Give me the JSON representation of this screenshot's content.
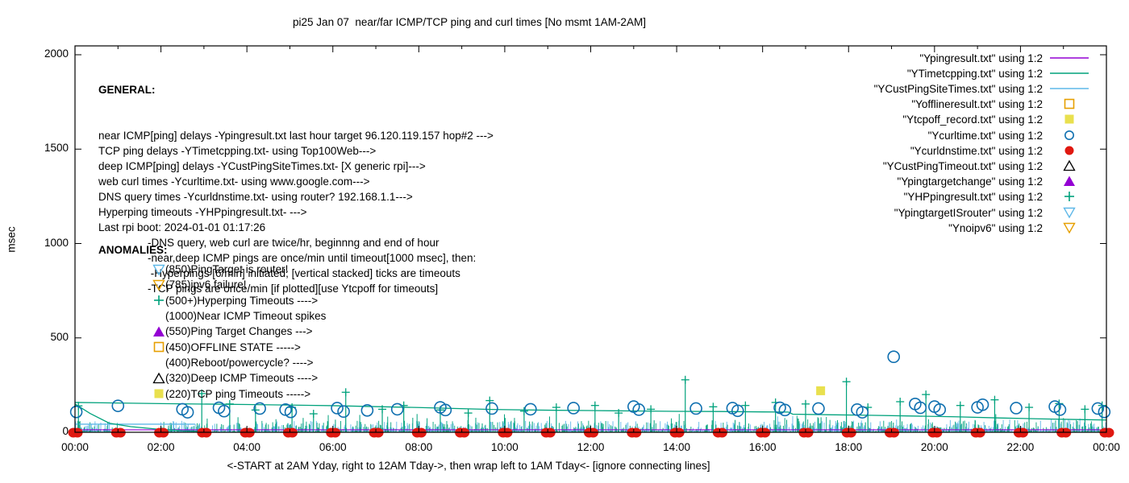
{
  "title": "pi25 Jan 07  near/far ICMP/TCP ping and curl times [No msmt 1AM-2AM]",
  "axes": {
    "ylabel": "msec",
    "xlabel": "<-START at 2AM Yday, right to 12AM Tday->, then wrap left to 1AM Tday<- [ignore connecting lines]",
    "ylim": [
      0,
      2000
    ],
    "yticks": [
      0,
      500,
      1000,
      1500,
      2000
    ],
    "xtick_hours": [
      0,
      2,
      4,
      6,
      8,
      10,
      12,
      14,
      16,
      18,
      20,
      22,
      24
    ],
    "xtick_labels": [
      "00:00",
      "02:00",
      "04:00",
      "06:00",
      "08:00",
      "10:00",
      "12:00",
      "14:00",
      "16:00",
      "18:00",
      "20:00",
      "22:00",
      "00:00"
    ]
  },
  "general": {
    "heading": "GENERAL:",
    "lines": [
      "near ICMP[ping] delays -Ypingresult.txt last hour target 96.120.119.157 hop#2 --->",
      "TCP ping delays -YTimetcpping.txt- using Top100Web--->",
      "deep ICMP[ping] delays -YCustPingSiteTimes.txt- [X generic rpi]--->",
      "web curl times -Ycurltime.txt- using www.google.com--->",
      "DNS query times -Ycurldnstime.txt- using router? 192.168.1.1--->",
      "Hyperping timeouts -YHPpingresult.txt- --->",
      "Last rpi boot: 2024-01-01 01:17:26"
    ],
    "indented_lines": [
      "-DNS query, web curl are twice/hr, beginnng and end of hour",
      "-near,deep ICMP pings are once/min until timeout[1000 msec], then:",
      " -Hyperpings [6/min] initiated; [vertical stacked] ticks are timeouts",
      "-TCP pings are once/min [if plotted][use Ytcpoff for timeouts]"
    ]
  },
  "anomalies": {
    "heading": "ANOMALIES:",
    "items": [
      {
        "marker": "triangle-down-open",
        "color": "#5fb8e8",
        "text": "(850)PingTarget is router!"
      },
      {
        "marker": "triangle-down-open",
        "color": "#e69f00",
        "text": "(785)ipv6 failure!"
      },
      {
        "marker": "plus",
        "color": "#00a27c",
        "text": "(500+)Hyperping Timeouts ---->"
      },
      {
        "marker": "none",
        "color": "",
        "text": "(1000)Near ICMP Timeout spikes"
      },
      {
        "marker": "triangle-filled",
        "color": "#9400d3",
        "text": "(550)Ping Target Changes --->"
      },
      {
        "marker": "square-open",
        "color": "#e69f00",
        "text": "(450)OFFLINE STATE ----->"
      },
      {
        "marker": "none",
        "color": "",
        "text": "(400)Reboot/powercycle? ---->"
      },
      {
        "marker": "triangle-open",
        "color": "#000000",
        "text": "(320)Deep ICMP Timeouts ---->"
      },
      {
        "marker": "square-filled",
        "color": "#e9e04e",
        "text": "(220)TCP ping Timeouts ----->"
      }
    ]
  },
  "legend": {
    "entries": [
      {
        "label": "\"Ypingresult.txt\" using 1:2",
        "marker": "line",
        "color": "#9400d3"
      },
      {
        "label": "\"YTimetcpping.txt\" using 1:2",
        "marker": "line",
        "color": "#00a27c"
      },
      {
        "label": "\"YCustPingSiteTimes.txt\" using 1:2",
        "marker": "line",
        "color": "#5fb8e8"
      },
      {
        "label": "\"Yofflineresult.txt\" using 1:2",
        "marker": "square-open",
        "color": "#e69f00"
      },
      {
        "label": "\"Ytcpoff_record.txt\" using 1:2",
        "marker": "square-filled",
        "color": "#e9e04e"
      },
      {
        "label": "\"Ycurltime.txt\" using 1:2",
        "marker": "circle-open",
        "color": "#1070b0"
      },
      {
        "label": "\"Ycurldnstime.txt\" using 1:2",
        "marker": "circle-filled",
        "color": "#e01810"
      },
      {
        "label": "\"YCustPingTimeout.txt\" using 1:2",
        "marker": "triangle-open",
        "color": "#000000"
      },
      {
        "label": "\"Ypingtargetchange\" using 1:2",
        "marker": "triangle-filled",
        "color": "#9400d3"
      },
      {
        "label": "\"YHPpingresult.txt\" using 1:2",
        "marker": "plus",
        "color": "#00a27c"
      },
      {
        "label": "\"YpingtargetISrouter\" using 1:2",
        "marker": "triangle-down-open",
        "color": "#5fb8e8"
      },
      {
        "label": "\"Ynoipv6\" using 1:2",
        "marker": "triangle-down-open",
        "color": "#e69f00"
      }
    ]
  },
  "chart_data": {
    "type": "line+scatter",
    "x_unit": "hour of day",
    "xlim_hours": [
      0,
      24
    ],
    "ylim_msec": [
      0,
      2000
    ],
    "no_measurement_gap_hours": [
      1.03,
      2.0
    ],
    "series": [
      {
        "name": "Ypingresult.txt",
        "style": "line",
        "color": "#9400d3",
        "segments": [
          [
            [
              0,
              13
            ],
            [
              24,
              13
            ]
          ]
        ],
        "note": "near ICMP ping delay, ~13 msec flat, mostly hidden under noise band"
      },
      {
        "name": "YTimetcpping.txt",
        "style": "line",
        "color": "#00a27c",
        "segments": [
          [
            [
              0,
              158
            ],
            [
              2,
              152
            ],
            [
              4,
              147
            ],
            [
              6,
              141
            ],
            [
              8,
              131
            ],
            [
              9.7,
              121
            ],
            [
              11,
              117
            ],
            [
              12,
              115
            ],
            [
              13,
              113
            ],
            [
              14,
              111
            ],
            [
              15,
              110
            ],
            [
              16,
              108
            ],
            [
              16.6,
              107
            ],
            [
              16.7,
              96
            ],
            [
              17.5,
              93
            ],
            [
              18.5,
              90
            ],
            [
              19.5,
              86
            ],
            [
              20.5,
              82
            ],
            [
              21.5,
              76
            ],
            [
              22.5,
              71
            ],
            [
              23.5,
              67
            ],
            [
              24,
              65
            ]
          ],
          [
            [
              0,
              150
            ],
            [
              0.35,
              100
            ],
            [
              0.8,
              48
            ],
            [
              1.3,
              30
            ],
            [
              1.9,
              17
            ],
            [
              2.5,
              8
            ],
            [
              3.1,
              4
            ]
          ]
        ],
        "note": "TCP ping delay, slowly descending ~158 to ~65 msec"
      },
      {
        "name": "YCustPingSiteTimes.txt",
        "style": "noise-band",
        "color": "#5fb8e8",
        "color2": "#00a27c",
        "band_msec": [
          3,
          58
        ],
        "elevated_amp": [
          [
            16.2,
            17.7,
            88
          ],
          [
            18.0,
            22.7,
            65
          ],
          [
            22.7,
            24.0,
            75
          ]
        ],
        "flat_segment": {
          "from": 0,
          "to": 2.8,
          "msec": 43
        },
        "seed": 1234,
        "note": "deep ICMP ping delays, dense noisy band 3-90 msec, gap 1AM-2AM"
      },
      {
        "name": "YHPpingresult.txt",
        "style": "spikes-plus",
        "color": "#00a27c",
        "points": [
          [
            0.08,
            140
          ],
          [
            2.95,
            205
          ],
          [
            3.6,
            150
          ],
          [
            4.2,
            118
          ],
          [
            5.05,
            132
          ],
          [
            5.55,
            98
          ],
          [
            6.3,
            212
          ],
          [
            7.15,
            122
          ],
          [
            7.65,
            142
          ],
          [
            8.5,
            118
          ],
          [
            9.15,
            102
          ],
          [
            9.65,
            168
          ],
          [
            10.45,
            112
          ],
          [
            11.2,
            132
          ],
          [
            12.1,
            142
          ],
          [
            12.65,
            102
          ],
          [
            13.4,
            122
          ],
          [
            14.2,
            278
          ],
          [
            14.85,
            135
          ],
          [
            15.6,
            142
          ],
          [
            16.3,
            158
          ],
          [
            17.0,
            150
          ],
          [
            17.95,
            268
          ],
          [
            18.45,
            132
          ],
          [
            19.2,
            162
          ],
          [
            19.8,
            200
          ],
          [
            20.6,
            142
          ],
          [
            21.4,
            172
          ],
          [
            22.2,
            132
          ],
          [
            22.9,
            152
          ],
          [
            23.5,
            122
          ],
          [
            23.9,
            142
          ]
        ],
        "note": "hyperping timeout vertical stacked ticks with + at top"
      },
      {
        "name": "Ycurltime.txt",
        "style": "scatter",
        "marker": "circle-open",
        "color": "#1070b0",
        "points": [
          [
            0.03,
            108
          ],
          [
            1.0,
            140
          ],
          [
            2.5,
            122
          ],
          [
            2.62,
            106
          ],
          [
            3.35,
            130
          ],
          [
            3.47,
            112
          ],
          [
            4.3,
            126
          ],
          [
            4.9,
            120
          ],
          [
            5.02,
            108
          ],
          [
            6.1,
            128
          ],
          [
            6.25,
            110
          ],
          [
            6.8,
            116
          ],
          [
            7.5,
            122
          ],
          [
            8.5,
            132
          ],
          [
            8.62,
            118
          ],
          [
            9.7,
            126
          ],
          [
            10.6,
            122
          ],
          [
            11.6,
            128
          ],
          [
            13.0,
            136
          ],
          [
            13.12,
            120
          ],
          [
            14.45,
            126
          ],
          [
            15.3,
            128
          ],
          [
            15.42,
            114
          ],
          [
            16.4,
            130
          ],
          [
            16.52,
            118
          ],
          [
            17.3,
            126
          ],
          [
            18.2,
            120
          ],
          [
            18.32,
            106
          ],
          [
            19.05,
            400
          ],
          [
            19.55,
            150
          ],
          [
            19.67,
            130
          ],
          [
            20.0,
            136
          ],
          [
            20.12,
            120
          ],
          [
            21.0,
            132
          ],
          [
            21.12,
            146
          ],
          [
            21.9,
            128
          ],
          [
            22.8,
            136
          ],
          [
            22.92,
            120
          ],
          [
            23.8,
            126
          ],
          [
            23.95,
            108
          ]
        ],
        "note": "web curl times twice/hr ~100-150 msec, one outlier ~400 at 19:00"
      },
      {
        "name": "Ycurldnstime.txt",
        "style": "scatter",
        "marker": "circle-filled",
        "color": "#e01810",
        "points": [
          [
            0,
            8
          ],
          [
            1,
            8
          ],
          [
            2,
            8
          ],
          [
            3,
            8
          ],
          [
            4,
            8
          ],
          [
            5,
            8
          ],
          [
            6,
            8
          ],
          [
            7,
            8
          ],
          [
            8,
            8
          ],
          [
            9,
            8
          ],
          [
            10,
            8
          ],
          [
            11,
            8
          ],
          [
            12,
            8
          ],
          [
            13,
            8
          ],
          [
            14,
            8
          ],
          [
            15,
            8
          ],
          [
            16,
            8
          ],
          [
            17,
            8
          ],
          [
            18,
            8
          ],
          [
            19,
            8
          ],
          [
            20,
            8
          ],
          [
            21,
            8
          ],
          [
            22,
            8
          ],
          [
            23,
            8
          ],
          [
            24,
            8
          ]
        ],
        "note": "DNS query times, red blobs on baseline every hour"
      },
      {
        "name": "Ytcpoff_record.txt",
        "style": "scatter",
        "marker": "square-filled",
        "color": "#e9e04e",
        "points": [
          [
            17.35,
            220
          ]
        ],
        "note": "single TCP-ping-timeout mark at (≈17:20, 220)"
      },
      {
        "name": "Yofflineresult.txt",
        "style": "scatter",
        "marker": "square-open",
        "color": "#e69f00",
        "points": []
      },
      {
        "name": "YCustPingTimeout.txt",
        "style": "scatter",
        "marker": "triangle-open",
        "color": "#000000",
        "points": []
      },
      {
        "name": "Ypingtargetchange",
        "style": "scatter",
        "marker": "triangle-filled",
        "color": "#9400d3",
        "points": []
      },
      {
        "name": "YpingtargetISrouter",
        "style": "scatter",
        "marker": "triangle-down-open",
        "color": "#5fb8e8",
        "points": []
      },
      {
        "name": "Ynoipv6",
        "style": "scatter",
        "marker": "triangle-down-open",
        "color": "#e69f00",
        "points": []
      }
    ]
  }
}
